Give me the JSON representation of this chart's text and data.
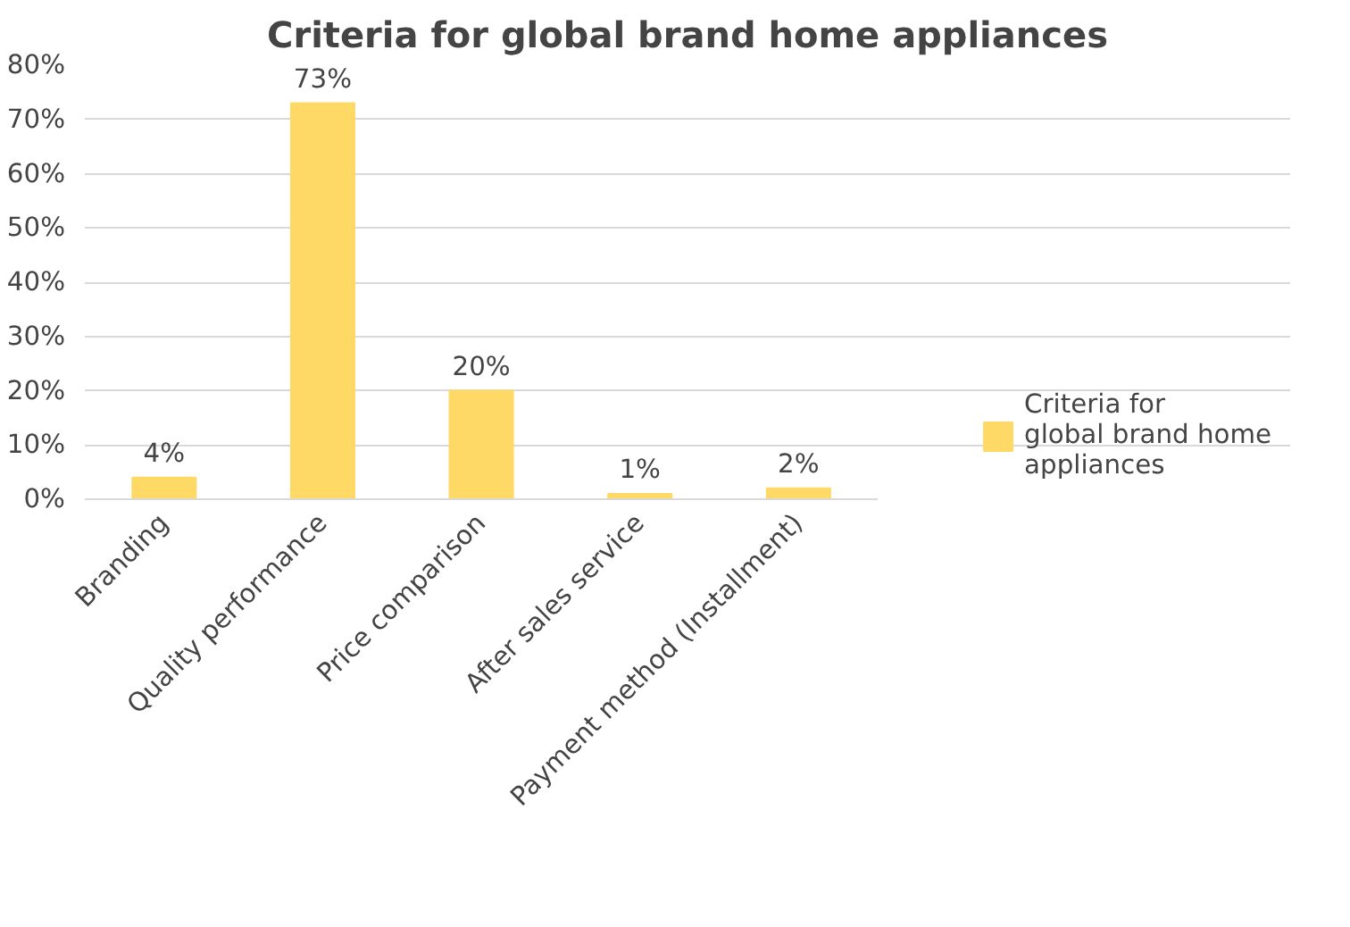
{
  "chart_data": {
    "type": "bar",
    "title": "Criteria for global brand home appliances",
    "categories": [
      "Branding",
      "Quality performance",
      "Price comparison",
      "After sales service",
      "Payment method (Installment)"
    ],
    "series": [
      {
        "name": "Criteria for global brand home appliances",
        "color": "#ffd966",
        "values": [
          4,
          73,
          20,
          1,
          2
        ]
      }
    ],
    "ylim": [
      0,
      80
    ],
    "yticks": [
      {
        "value": 0,
        "label": "0%"
      },
      {
        "value": 10,
        "label": "10%"
      },
      {
        "value": 20,
        "label": "20%"
      },
      {
        "value": 30,
        "label": "30%"
      },
      {
        "value": 40,
        "label": "40%"
      },
      {
        "value": 50,
        "label": "50%"
      },
      {
        "value": 60,
        "label": "60%"
      },
      {
        "value": 70,
        "label": "70%"
      },
      {
        "value": 80,
        "label": "80%"
      }
    ],
    "value_labels": [
      "4%",
      "73%",
      "20%",
      "1%",
      "2%"
    ],
    "grid": "y",
    "legend": "right"
  }
}
